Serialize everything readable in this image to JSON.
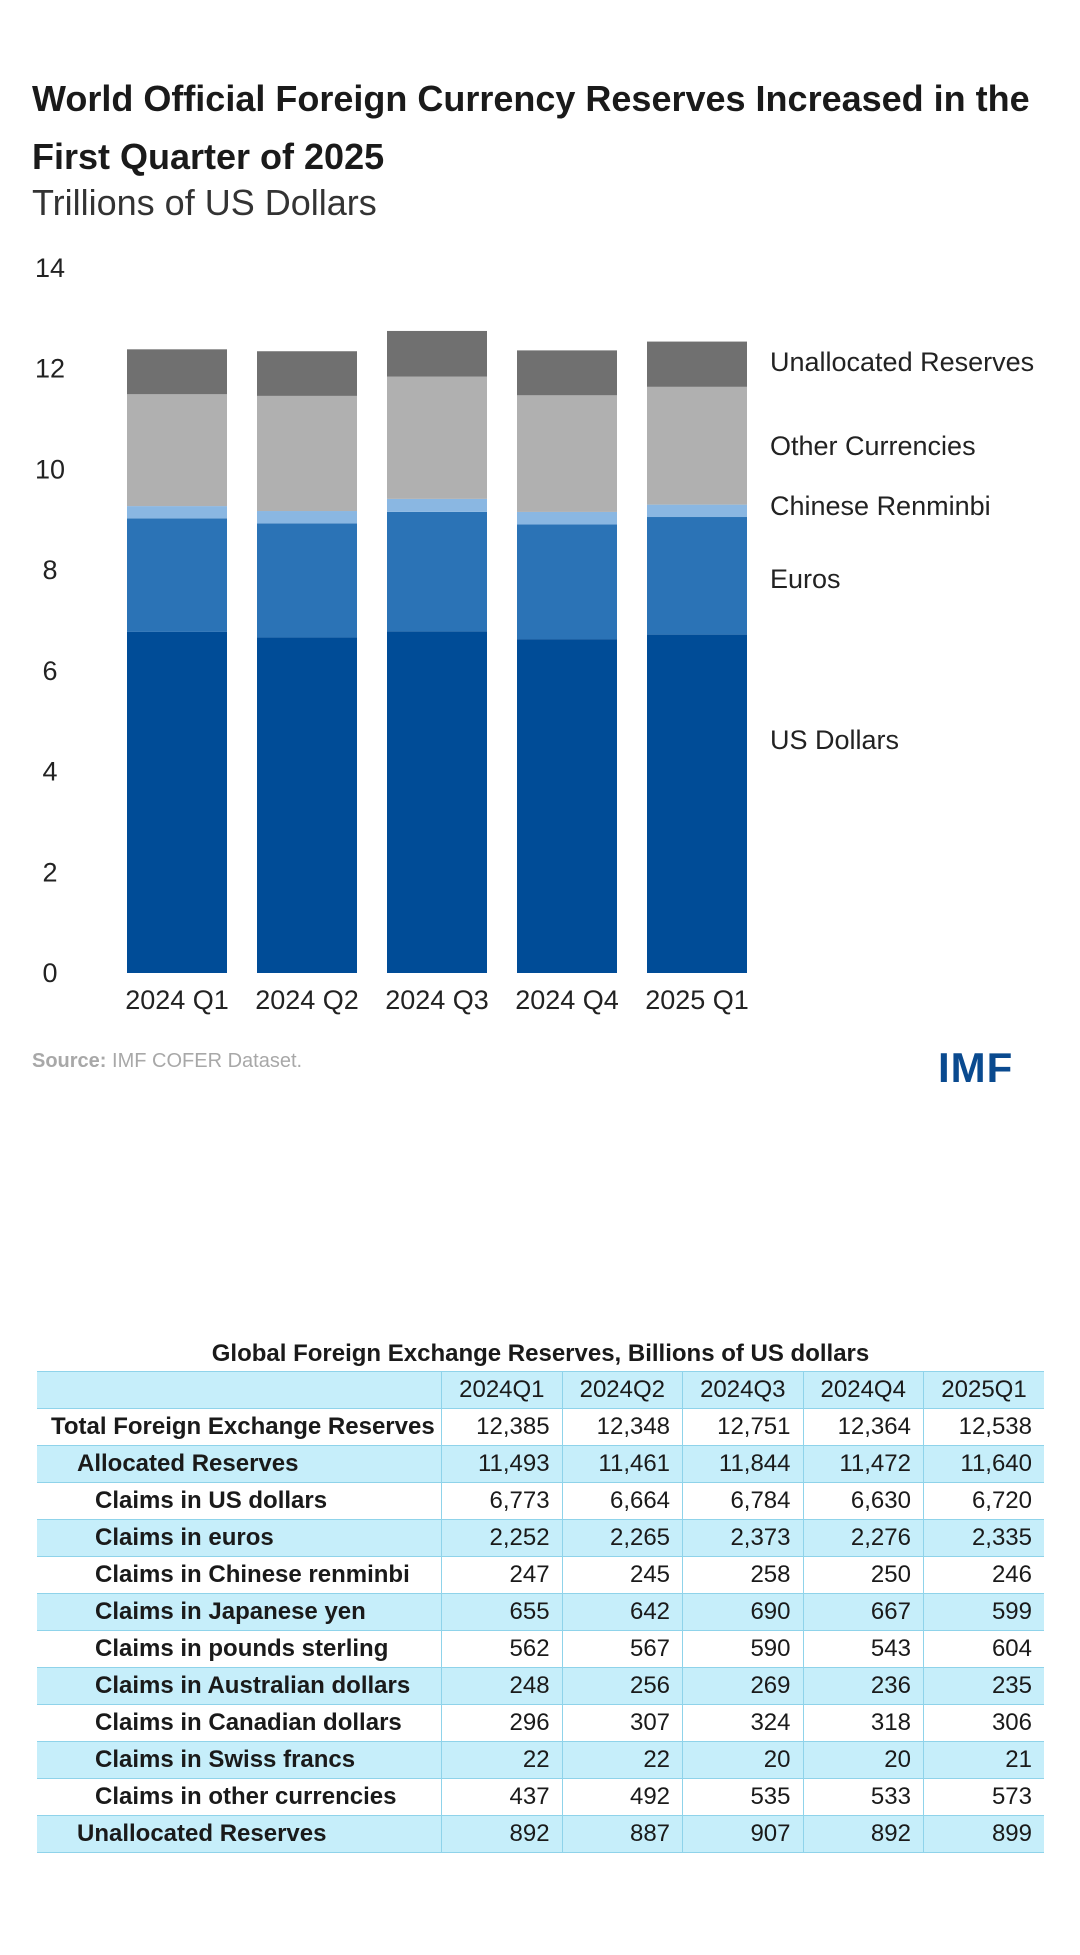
{
  "title": "World Official Foreign Currency Reserves Increased in the First Quarter of 2025",
  "subtitle": "Trillions of US Dollars",
  "source_label": "Source:",
  "source_text": "IMF COFER Dataset.",
  "logo": "IMF",
  "chart_data": {
    "type": "bar",
    "stacked": true,
    "title": "World Official Foreign Currency Reserves Increased in the First Quarter of 2025",
    "ylabel": "Trillions of US Dollars",
    "xlabel": "",
    "ylim": [
      0,
      14
    ],
    "yticks": [
      "0",
      "2",
      "4",
      "6",
      "8",
      "10",
      "12",
      "14"
    ],
    "grid": false,
    "legend": "right, inline labels",
    "categories": [
      "2024 Q1",
      "2024 Q2",
      "2024 Q3",
      "2024 Q4",
      "2025 Q1"
    ],
    "series": [
      {
        "name": "US Dollars",
        "color": "#004c97",
        "values": [
          6.773,
          6.664,
          6.784,
          6.63,
          6.72
        ]
      },
      {
        "name": "Euros",
        "color": "#2b73b6",
        "values": [
          2.252,
          2.265,
          2.373,
          2.276,
          2.335
        ]
      },
      {
        "name": "Chinese Renminbi",
        "color": "#8ab7e2",
        "values": [
          0.247,
          0.245,
          0.258,
          0.25,
          0.246
        ]
      },
      {
        "name": "Other Currencies",
        "color": "#b0b0b0",
        "values": [
          2.221,
          2.286,
          2.428,
          2.316,
          2.339
        ]
      },
      {
        "name": "Unallocated Reserves",
        "color": "#707070",
        "values": [
          0.892,
          0.887,
          0.907,
          0.892,
          0.899
        ]
      }
    ],
    "legend_order": [
      "Unallocated Reserves",
      "Other Currencies",
      "Chinese Renminbi",
      "Euros",
      "US Dollars"
    ]
  },
  "table": {
    "title": "Global Foreign Exchange Reserves, Billions of US dollars",
    "columns": [
      "",
      "2024Q1",
      "2024Q2",
      "2024Q3",
      "2024Q4",
      "2025Q1"
    ],
    "rows": [
      {
        "label": "Total Foreign Exchange Reserves",
        "level": 0,
        "values": [
          "12,385",
          "12,348",
          "12,751",
          "12,364",
          "12,538"
        ]
      },
      {
        "label": "Allocated Reserves",
        "level": 1,
        "values": [
          "11,493",
          "11,461",
          "11,844",
          "11,472",
          "11,640"
        ]
      },
      {
        "label": "Claims in US dollars",
        "level": 2,
        "values": [
          "6,773",
          "6,664",
          "6,784",
          "6,630",
          "6,720"
        ]
      },
      {
        "label": "Claims in euros",
        "level": 2,
        "values": [
          "2,252",
          "2,265",
          "2,373",
          "2,276",
          "2,335"
        ]
      },
      {
        "label": "Claims in Chinese renminbi",
        "level": 2,
        "values": [
          "247",
          "245",
          "258",
          "250",
          "246"
        ]
      },
      {
        "label": "Claims in Japanese yen",
        "level": 2,
        "values": [
          "655",
          "642",
          "690",
          "667",
          "599"
        ]
      },
      {
        "label": "Claims in pounds sterling",
        "level": 2,
        "values": [
          "562",
          "567",
          "590",
          "543",
          "604"
        ]
      },
      {
        "label": "Claims in Australian dollars",
        "level": 2,
        "values": [
          "248",
          "256",
          "269",
          "236",
          "235"
        ]
      },
      {
        "label": "Claims in Canadian dollars",
        "level": 2,
        "values": [
          "296",
          "307",
          "324",
          "318",
          "306"
        ]
      },
      {
        "label": "Claims in Swiss francs",
        "level": 2,
        "values": [
          "22",
          "22",
          "20",
          "20",
          "21"
        ]
      },
      {
        "label": "Claims in other currencies",
        "level": 2,
        "values": [
          "437",
          "492",
          "535",
          "533",
          "573"
        ]
      },
      {
        "label": "Unallocated Reserves",
        "level": 1,
        "values": [
          "892",
          "887",
          "907",
          "892",
          "899"
        ]
      }
    ]
  }
}
